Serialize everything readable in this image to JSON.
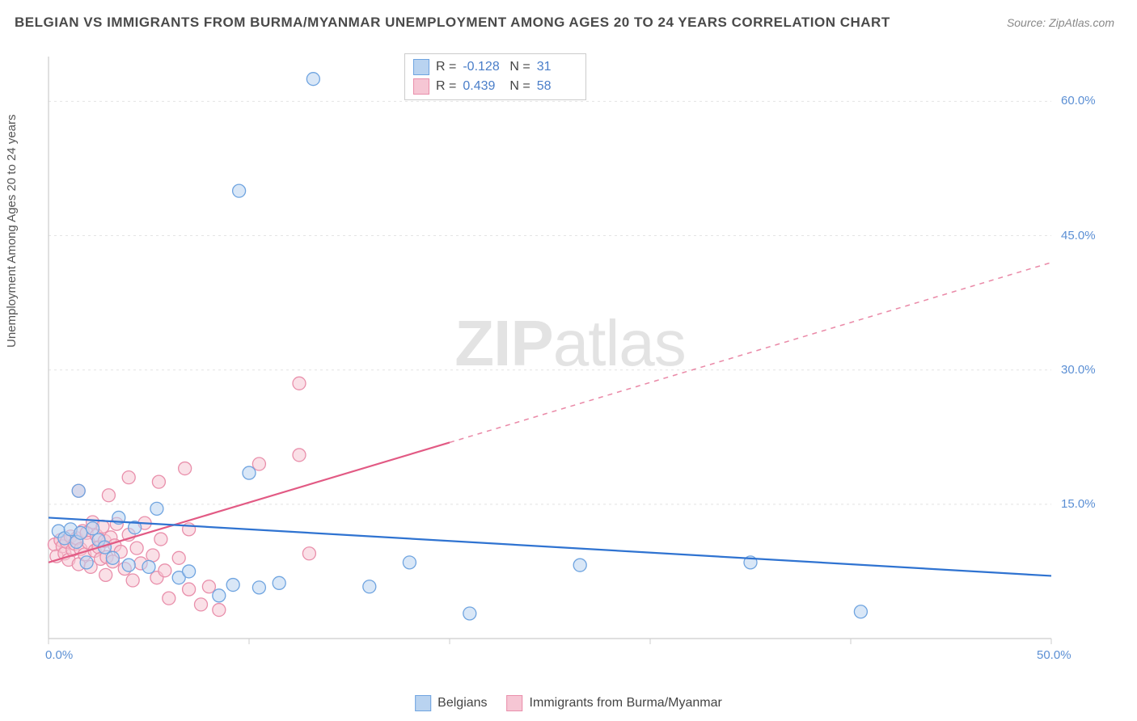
{
  "title": "BELGIAN VS IMMIGRANTS FROM BURMA/MYANMAR UNEMPLOYMENT AMONG AGES 20 TO 24 YEARS CORRELATION CHART",
  "source": "Source: ZipAtlas.com",
  "watermark": {
    "zip": "ZIP",
    "atlas": "atlas"
  },
  "y_axis_label": "Unemployment Among Ages 20 to 24 years",
  "chart": {
    "type": "scatter",
    "background_color": "#ffffff",
    "grid_color": "#e4e4e4",
    "axis_line_color": "#cccccc",
    "tick_label_color": "#5b8fd4",
    "xlim": [
      0,
      50
    ],
    "ylim": [
      0,
      65
    ],
    "x_ticks": [
      0,
      10,
      20,
      30,
      40,
      50
    ],
    "x_tick_labels": [
      "0.0%",
      "",
      "",
      "",
      "",
      "50.0%"
    ],
    "y_ticks": [
      15,
      30,
      45,
      60
    ],
    "y_tick_labels": [
      "15.0%",
      "30.0%",
      "45.0%",
      "60.0%"
    ],
    "marker_radius": 8,
    "marker_opacity": 0.55,
    "line_width": 2.2
  },
  "stats_box": {
    "border_color": "#cccccc",
    "rows": [
      {
        "swatch_fill": "#b9d3f0",
        "swatch_stroke": "#6fa4e0",
        "r_label": "R =",
        "r": "-0.128",
        "n_label": "N =",
        "n": "31"
      },
      {
        "swatch_fill": "#f6c6d4",
        "swatch_stroke": "#e98fab",
        "r_label": "R =",
        "r": "0.439",
        "n_label": "N =",
        "n": "58"
      }
    ]
  },
  "series": {
    "belgians": {
      "label": "Belgians",
      "marker_fill": "#b9d3f0",
      "marker_stroke": "#6fa4e0",
      "line_color": "#2f73d1",
      "trend": {
        "x1": 0,
        "y1": 13.5,
        "x2": 50,
        "y2": 7.0,
        "solid_until_x": 50
      },
      "points": [
        [
          0.5,
          12
        ],
        [
          0.8,
          11.2
        ],
        [
          1.1,
          12.2
        ],
        [
          1.4,
          10.8
        ],
        [
          1.6,
          11.8
        ],
        [
          1.9,
          8.5
        ],
        [
          2.2,
          12.3
        ],
        [
          2.5,
          11.0
        ],
        [
          2.8,
          10.2
        ],
        [
          3.2,
          9.0
        ],
        [
          3.5,
          13.5
        ],
        [
          1.5,
          16.5
        ],
        [
          4.0,
          8.2
        ],
        [
          4.3,
          12.4
        ],
        [
          5.0,
          8.0
        ],
        [
          5.4,
          14.5
        ],
        [
          6.5,
          6.8
        ],
        [
          7.0,
          7.5
        ],
        [
          8.5,
          4.8
        ],
        [
          9.2,
          6.0
        ],
        [
          10.0,
          18.5
        ],
        [
          10.5,
          5.7
        ],
        [
          11.5,
          6.2
        ],
        [
          9.5,
          50.0
        ],
        [
          13.2,
          62.5
        ],
        [
          16.0,
          5.8
        ],
        [
          18.0,
          8.5
        ],
        [
          21.0,
          2.8
        ],
        [
          26.5,
          8.2
        ],
        [
          35.0,
          8.5
        ],
        [
          40.5,
          3.0
        ]
      ]
    },
    "burma": {
      "label": "Immigrants from Burma/Myanmar",
      "marker_fill": "#f6c6d4",
      "marker_stroke": "#e98fab",
      "line_color": "#e25a84",
      "trend": {
        "x1": 0,
        "y1": 8.5,
        "x2": 50,
        "y2": 42.0,
        "solid_until_x": 20
      },
      "points": [
        [
          0.3,
          10.5
        ],
        [
          0.4,
          9.2
        ],
        [
          0.6,
          11.0
        ],
        [
          0.7,
          10.3
        ],
        [
          0.8,
          9.5
        ],
        [
          0.9,
          10.8
        ],
        [
          1.0,
          8.8
        ],
        [
          1.1,
          11.4
        ],
        [
          1.2,
          9.9
        ],
        [
          1.3,
          10.6
        ],
        [
          1.4,
          11.2
        ],
        [
          1.5,
          8.3
        ],
        [
          1.6,
          10.0
        ],
        [
          1.7,
          12.0
        ],
        [
          1.8,
          9.4
        ],
        [
          1.9,
          11.8
        ],
        [
          2.0,
          10.7
        ],
        [
          2.1,
          8.0
        ],
        [
          2.2,
          13.0
        ],
        [
          2.3,
          9.8
        ],
        [
          2.4,
          11.5
        ],
        [
          2.5,
          10.2
        ],
        [
          2.6,
          8.9
        ],
        [
          2.7,
          12.5
        ],
        [
          2.85,
          7.1
        ],
        [
          2.8,
          10.9
        ],
        [
          2.9,
          9.1
        ],
        [
          3.0,
          16.0
        ],
        [
          3.1,
          11.3
        ],
        [
          3.2,
          8.6
        ],
        [
          3.3,
          10.4
        ],
        [
          3.4,
          12.8
        ],
        [
          1.5,
          16.5
        ],
        [
          3.6,
          9.7
        ],
        [
          3.8,
          7.8
        ],
        [
          4.0,
          11.6
        ],
        [
          4.2,
          6.5
        ],
        [
          4.4,
          10.1
        ],
        [
          4.6,
          8.4
        ],
        [
          4.8,
          12.9
        ],
        [
          4.0,
          18.0
        ],
        [
          5.2,
          9.3
        ],
        [
          5.4,
          6.8
        ],
        [
          5.6,
          11.1
        ],
        [
          5.8,
          7.6
        ],
        [
          6.0,
          4.5
        ],
        [
          6.5,
          9.0
        ],
        [
          7.0,
          5.5
        ],
        [
          5.5,
          17.5
        ],
        [
          6.8,
          19.0
        ],
        [
          7.6,
          3.8
        ],
        [
          7.0,
          12.2
        ],
        [
          8.0,
          5.8
        ],
        [
          8.5,
          3.2
        ],
        [
          10.5,
          19.5
        ],
        [
          12.5,
          20.5
        ],
        [
          12.5,
          28.5
        ],
        [
          13.0,
          9.5
        ]
      ]
    }
  },
  "bottom_legend": [
    {
      "swatch_fill": "#b9d3f0",
      "swatch_stroke": "#6fa4e0",
      "label": "Belgians"
    },
    {
      "swatch_fill": "#f6c6d4",
      "swatch_stroke": "#e98fab",
      "label": "Immigrants from Burma/Myanmar"
    }
  ]
}
